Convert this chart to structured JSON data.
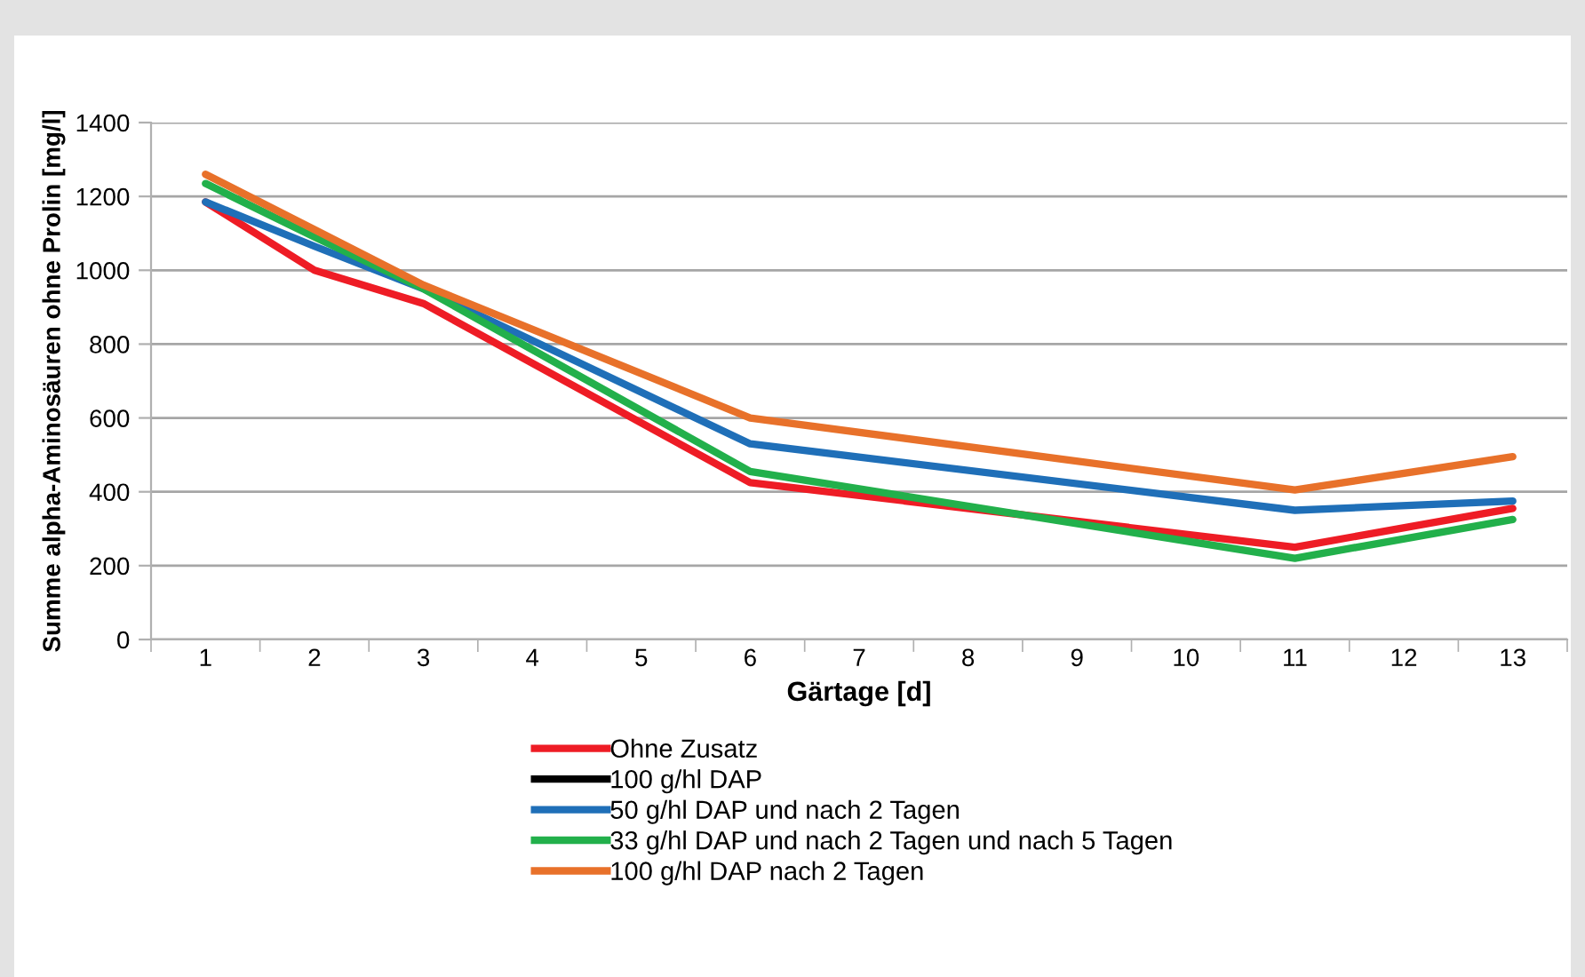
{
  "chart_data": {
    "type": "line",
    "xlabel": "Gärtage [d]",
    "ylabel": "Summe alpha-Aminosäuren ohne Prolin [mg/l]",
    "categories": [
      "1",
      "2",
      "3",
      "4",
      "5",
      "6",
      "7",
      "8",
      "9",
      "10",
      "11",
      "12",
      "13"
    ],
    "series": [
      {
        "name": "Ohne Zusatz",
        "color": "#ee1c25",
        "values": [
          1185,
          1000,
          910,
          null,
          null,
          425,
          null,
          null,
          null,
          null,
          250,
          null,
          355
        ]
      },
      {
        "name": "100 g/hl DAP",
        "color": "#000000",
        "values": [
          null,
          null,
          null,
          null,
          null,
          null,
          null,
          null,
          null,
          null,
          null,
          null,
          null
        ]
      },
      {
        "name": "50 g/hl DAP und nach 2 Tagen",
        "color": "#1f6fb8",
        "values": [
          1185,
          1065,
          950,
          null,
          null,
          530,
          null,
          null,
          null,
          null,
          350,
          null,
          375
        ]
      },
      {
        "name": "33 g/hl DAP und nach 2 Tagen und nach 5 Tagen",
        "color": "#22b04b",
        "values": [
          1235,
          1090,
          950,
          null,
          null,
          455,
          null,
          null,
          null,
          null,
          220,
          null,
          325
        ]
      },
      {
        "name": "100 g/hl DAP nach 2 Tagen",
        "color": "#e8712a",
        "values": [
          1260,
          1110,
          960,
          null,
          null,
          600,
          null,
          null,
          null,
          null,
          405,
          null,
          495
        ]
      }
    ],
    "ylim": [
      0,
      1400
    ],
    "yticks": [
      0,
      200,
      400,
      600,
      800,
      1000,
      1200,
      1400
    ],
    "grid": "y",
    "legend": "bottom",
    "marker": "none",
    "line_style": "solid"
  }
}
